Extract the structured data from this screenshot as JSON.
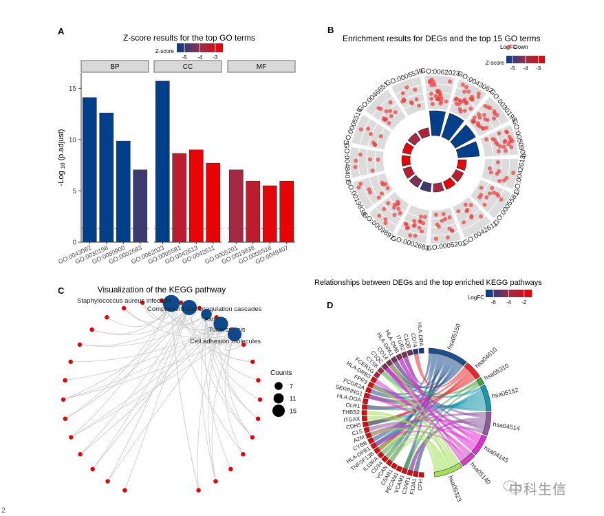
{
  "figure": {
    "watermark": "中科生信",
    "page_number": "2"
  },
  "chart_data": [
    {
      "panel": "A",
      "type": "bar",
      "title": "Z-score results for the top GO terms",
      "xlabel": "",
      "ylabel": "-Log 10 (p.adjust)",
      "ylabel_parts": {
        "pre": "-Log ",
        "sub": "10",
        "post": " (p.adjust)"
      },
      "ylim": [
        0,
        16.5
      ],
      "yticks": [
        0,
        5,
        10,
        15
      ],
      "threshold_line": 1.3,
      "legend": {
        "title": "Z-score",
        "ticks": [
          "-5",
          "-4",
          "-3"
        ],
        "range": [
          -5.5,
          -2.5
        ],
        "placement": "top-center"
      },
      "facets": [
        {
          "label": "BP",
          "categories": [
            "GO:0043062",
            "GO:0030198",
            "GO:0050900",
            "GO:0002683"
          ],
          "values": [
            14.1,
            12.6,
            9.85,
            7.05
          ],
          "zscore": [
            -5.5,
            -5.5,
            -5.5,
            -4.9
          ]
        },
        {
          "label": "CC",
          "categories": [
            "GO:0062023",
            "GO:0005581",
            "GO:0042613",
            "GO:0042611"
          ],
          "values": [
            15.7,
            8.65,
            9.0,
            7.7
          ],
          "zscore": [
            -5.5,
            -3.4,
            -2.6,
            -2.6
          ]
        },
        {
          "label": "MF",
          "categories": [
            "GO:0005201",
            "GO:0019838",
            "GO:0005518",
            "GO:0048407"
          ],
          "values": [
            7.05,
            5.95,
            5.5,
            5.95
          ],
          "zscore": [
            -3.8,
            -3.4,
            -2.7,
            -2.6
          ]
        }
      ]
    },
    {
      "panel": "B",
      "type": "scatter",
      "subtype": "circular-go-plot",
      "title": "Enrichment results for DEGs and the top 15 GO terms",
      "legend": {
        "logfc_title": "LogFC",
        "logfc_item": "Down",
        "z_title": "Z-score",
        "z_ticks": [
          "-5",
          "-4",
          "-3"
        ]
      },
      "terms": [
        {
          "id": "GO:0062023",
          "count": 24,
          "zscore": -5.5
        },
        {
          "id": "GO:0043062",
          "count": 24,
          "zscore": -5.5
        },
        {
          "id": "GO:0030198",
          "count": 22,
          "zscore": -5.5
        },
        {
          "id": "GO:0050900",
          "count": 20,
          "zscore": -5.5
        },
        {
          "id": "GO:0042613",
          "count": 9,
          "zscore": -2.6
        },
        {
          "id": "GO:0005581",
          "count": 11,
          "zscore": -3.4
        },
        {
          "id": "GO:0042611",
          "count": 9,
          "zscore": -2.6
        },
        {
          "id": "GO:0005201",
          "count": 12,
          "zscore": -3.8
        },
        {
          "id": "GO:0002683",
          "count": 16,
          "zscore": -4.9
        },
        {
          "id": "GO:0009897",
          "count": 13,
          "zscore": -4.3
        },
        {
          "id": "GO:0019838",
          "count": 10,
          "zscore": -3.4
        },
        {
          "id": "GO:0048407",
          "count": 6,
          "zscore": -2.6
        },
        {
          "id": "GO:0005518",
          "count": 7,
          "zscore": -2.7
        },
        {
          "id": "GO:0046651",
          "count": 12,
          "zscore": -3.8
        },
        {
          "id": "GO:0005539",
          "count": 10,
          "zscore": -3.6
        }
      ]
    },
    {
      "panel": "C",
      "type": "scatter",
      "subtype": "network",
      "title": "Visualization of the KEGG pathway",
      "pathways": [
        {
          "name": "Staphylococcus aureus infection",
          "count": 15
        },
        {
          "name": "Complement and coagulation cascades",
          "count": 13
        },
        {
          "name": "Asthma",
          "count": 7
        },
        {
          "name": "Tuberculosis",
          "count": 12
        },
        {
          "name": "Cell adhesion molecules",
          "count": 11
        }
      ],
      "gene_node_count": 29,
      "legend": {
        "title": "Counts",
        "sizes": [
          7,
          11,
          15
        ],
        "placement": "right"
      }
    },
    {
      "panel": "D",
      "type": "chord",
      "title": "Relationships between DEGs and the top enriched KEGG pathways",
      "legend": {
        "title": "LogFC",
        "ticks": [
          "-6",
          "-4",
          "-2"
        ],
        "range": [
          -7,
          -1
        ]
      },
      "pathways": [
        {
          "id": "hsa05150",
          "color": "#1f4e8c",
          "weight": 15
        },
        {
          "id": "hsa04610",
          "color": "#e8262b",
          "weight": 7
        },
        {
          "id": "hsa05310",
          "color": "#3ca63a",
          "weight": 3
        },
        {
          "id": "hsa05152",
          "color": "#1596ad",
          "weight": 10
        },
        {
          "id": "hsa04514",
          "color": "#8e5a9e",
          "weight": 9
        },
        {
          "id": "hsa04145",
          "color": "#e02ed6",
          "weight": 8
        },
        {
          "id": "hsa05140",
          "color": "#d63ec8",
          "weight": 6
        },
        {
          "id": "hsa05323",
          "color": "#a3e05a",
          "weight": 11
        }
      ],
      "genes": [
        {
          "name": "CFH",
          "logfc": -1.5
        },
        {
          "name": "F13A1",
          "logfc": -1.5
        },
        {
          "name": "C3AR1",
          "logfc": -1.5
        },
        {
          "name": "VCAM1",
          "logfc": -1.5
        },
        {
          "name": "PECAM1",
          "logfc": -1.5
        },
        {
          "name": "C5AR1",
          "logfc": -1.5
        },
        {
          "name": "VCAN",
          "logfc": -1.5
        },
        {
          "name": "CD34",
          "logfc": -1.5
        },
        {
          "name": "IL10RA",
          "logfc": -1.5
        },
        {
          "name": "TNFSF13B",
          "logfc": -1.5
        },
        {
          "name": "HLA-DPB1",
          "logfc": -1.5
        },
        {
          "name": "CYBB",
          "logfc": -1.5
        },
        {
          "name": "A2M",
          "logfc": -1.5
        },
        {
          "name": "C1S",
          "logfc": -1.5
        },
        {
          "name": "CDH5",
          "logfc": -1.5
        },
        {
          "name": "ITGAX",
          "logfc": -1.5
        },
        {
          "name": "THBS2",
          "logfc": -1.5
        },
        {
          "name": "OLR1",
          "logfc": -1.5
        },
        {
          "name": "HLA-DOA",
          "logfc": -1.5
        },
        {
          "name": "SERPING1",
          "logfc": -1.5
        },
        {
          "name": "FCGR2A",
          "logfc": -1.5
        },
        {
          "name": "FPR3",
          "logfc": -1.5
        },
        {
          "name": "HLA-DRB3",
          "logfc": -1.5
        },
        {
          "name": "FCER1G",
          "logfc": -3
        },
        {
          "name": "CTSK",
          "logfc": -4
        },
        {
          "name": "C1QC",
          "logfc": -4.5
        },
        {
          "name": "CD14",
          "logfc": -4.5
        },
        {
          "name": "HLA-DPA1",
          "logfc": -4.5
        },
        {
          "name": "HLA-DMB",
          "logfc": -4.5
        },
        {
          "name": "ITGB2",
          "logfc": -4.5
        },
        {
          "name": "C1QB",
          "logfc": -5
        },
        {
          "name": "CD74",
          "logfc": -6.5
        },
        {
          "name": "HLA-DRA",
          "logfc": -6.5
        }
      ]
    }
  ]
}
